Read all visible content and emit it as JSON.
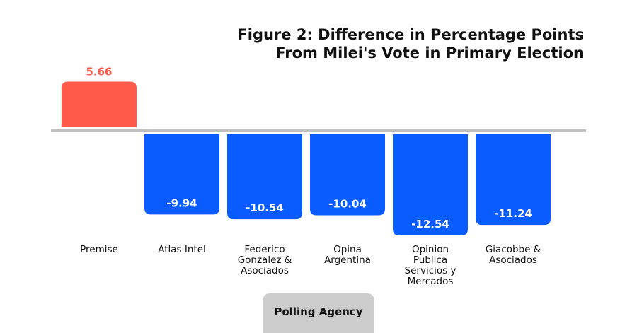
{
  "chart_data": {
    "type": "bar",
    "title_lines": [
      "Figure 2: Difference in Percentage Points",
      "From Milei's Vote in Primary Election"
    ],
    "xlabel": "Polling Agency",
    "ylabel": "",
    "categories": [
      [
        "Premise"
      ],
      [
        "Atlas Intel"
      ],
      [
        "Federico",
        "Gonzalez &",
        "Asociados"
      ],
      [
        "Opina",
        "Argentina"
      ],
      [
        "Opinion",
        "Publica",
        "Servicios y",
        "Mercados"
      ],
      [
        "Giacobbe &",
        "Asociados"
      ]
    ],
    "values": [
      5.66,
      -9.94,
      -10.54,
      -10.04,
      -12.54,
      -11.24
    ],
    "data_labels": [
      "5.66",
      "-9.94",
      "-10.54",
      "-10.04",
      "-12.54",
      "-11.24"
    ],
    "grid": false,
    "colors": {
      "positive": "#ff5a4a",
      "negative": "#0a5cff",
      "zero_line": "#c0c0c0",
      "positive_label": "#ff5a4a",
      "negative_label": "#ffffff",
      "text": "#111111",
      "axis_title_box": "#cccccc"
    }
  }
}
